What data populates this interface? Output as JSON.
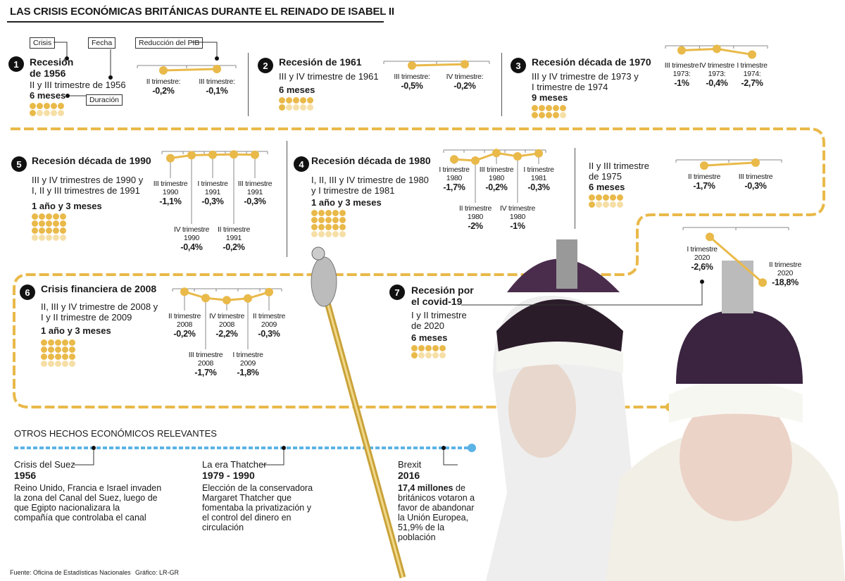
{
  "title": "LAS CRISIS ECONÓMICAS BRITÁNICAS DURANTE EL REINADO DE ISABEL II",
  "legend": {
    "crisis": "Crisis",
    "fecha": "Fecha",
    "reduccion": "Reducción del PIB",
    "duracion": "Duración"
  },
  "colors": {
    "accent": "#e9b949",
    "accent_light": "#f6dfa6",
    "timeline": "#5bb3e6"
  },
  "crises": [
    {
      "num": "1",
      "name": "Recesión\nde 1956",
      "date": "II y III trimestre de 1956",
      "duration": "6 meses",
      "months": 6,
      "chart": [
        {
          "label": "II trimestre:",
          "value": "-0,2%",
          "v": -0.2
        },
        {
          "label": "III trimestre:",
          "value": "-0,1%",
          "v": -0.1
        }
      ]
    },
    {
      "num": "2",
      "name": "Recesión de 1961",
      "date": "III y IV trimestre de 1961",
      "duration": "6 meses",
      "months": 6,
      "chart": [
        {
          "label": "III trimestre:",
          "value": "-0,5%",
          "v": -0.5
        },
        {
          "label": "IV trimestre:",
          "value": "-0,2%",
          "v": -0.2
        }
      ]
    },
    {
      "num": "3",
      "name": "Recesión década de 1970",
      "date": "III y IV trimestre de 1973 y\nI trimestre de 1974",
      "duration": "9 meses",
      "months": 9,
      "chart": [
        {
          "label": "III trimestre\n1973:",
          "value": "-1%",
          "v": -1
        },
        {
          "label": "IV trimestre\n1973:",
          "value": "-0,4%",
          "v": -0.4
        },
        {
          "label": "I trimestre\n1974:",
          "value": "-2,7%",
          "v": -2.7
        }
      ]
    },
    {
      "num": "",
      "name": "",
      "date": "II y III trimestre\nde 1975",
      "duration": "6 meses",
      "months": 6,
      "chart": [
        {
          "label": "II trimestre",
          "value": "-1,7%",
          "v": -1.7
        },
        {
          "label": "III trimestre",
          "value": "-0,3%",
          "v": -0.3
        }
      ]
    },
    {
      "num": "4",
      "name": "Recesión década de 1980",
      "date": "I, II, III y IV trimestre de 1980\ny I trimestre de 1981",
      "duration": "1 año y 3 meses",
      "months": 15,
      "chart": [
        {
          "label": "I trimestre\n1980",
          "value": "-1,7%",
          "v": -1.7
        },
        {
          "label": "II trimestre\n1980",
          "value": "-2%",
          "v": -2
        },
        {
          "label": "III trimestre\n1980",
          "value": "-0,2%",
          "v": -0.2
        },
        {
          "label": "IV trimestre\n1980",
          "value": "-1%",
          "v": -1
        },
        {
          "label": "I trimestre\n1981",
          "value": "-0,3%",
          "v": -0.3
        }
      ]
    },
    {
      "num": "5",
      "name": "Recesión década de 1990",
      "date": "III y IV trimestres de 1990 y\nI, II y III trimestres de 1991",
      "duration": "1 año y 3 meses",
      "months": 15,
      "chart": [
        {
          "label": "III trimestre\n1990",
          "value": "-1,1%",
          "v": -1.1
        },
        {
          "label": "IV trimestre\n1990",
          "value": "-0,4%",
          "v": -0.4
        },
        {
          "label": "I trimestre\n1991",
          "value": "-0,3%",
          "v": -0.3
        },
        {
          "label": "II trimestre\n1991",
          "value": "-0,2%",
          "v": -0.2
        },
        {
          "label": "III trimestre\n1991",
          "value": "-0,3%",
          "v": -0.3
        }
      ]
    },
    {
      "num": "6",
      "name": "Crisis financiera de 2008",
      "date": "II, III y IV trimestre de 2008 y\nI y II trimestre de 2009",
      "duration": "1 año y 3 meses",
      "months": 15,
      "chart": [
        {
          "label": "II trimestre\n2008",
          "value": "-0,2%",
          "v": -0.2
        },
        {
          "label": "III trimestre\n2008",
          "value": "-1,7%",
          "v": -1.7
        },
        {
          "label": "IV trimestre\n2008",
          "value": "-2,2%",
          "v": -2.2
        },
        {
          "label": "I trimestre\n2009",
          "value": "-1,8%",
          "v": -1.8
        },
        {
          "label": "II trimestre\n2009",
          "value": "-0,3%",
          "v": -0.3
        }
      ]
    },
    {
      "num": "7",
      "name": "Recesión por\nel covid-19",
      "date": "I y II trimestre\nde 2020",
      "duration": "6 meses",
      "months": 6,
      "chart": [
        {
          "label": "I trimestre\n2020",
          "value": "-2,6%",
          "v": -2.6
        },
        {
          "label": "II trimestre\n2020",
          "value": "-18,8%",
          "v": -18.8
        }
      ]
    }
  ],
  "others": {
    "title": "OTROS HECHOS ECONÓMICOS RELEVANTES",
    "events": [
      {
        "name": "Crisis del Suez",
        "year": "1956",
        "text": "Reino Unido, Francia e Israel invaden\nla zona del Canal del Suez, luego de\nque Egipto nacionalizara la\ncompañía que controlaba el canal"
      },
      {
        "name": "La era Thatcher",
        "year": "1979 - 1990",
        "text": "Elección de la conservadora\nMargaret Thatcher que\nfomentaba la privatización y\nel control del dinero en\ncirculación"
      },
      {
        "name": "Brexit",
        "year": "2016",
        "text_bold": "17,4 millones",
        "text": "de\nbritánicos votaron a\nfavor de abandonar\nla Unión Europea,\n51,9% de la\npoblación"
      }
    ]
  },
  "footer": {
    "source": "Fuente: Oficina de Estadísticas Nacionales",
    "credit": "Gráfico: LR-GR"
  }
}
